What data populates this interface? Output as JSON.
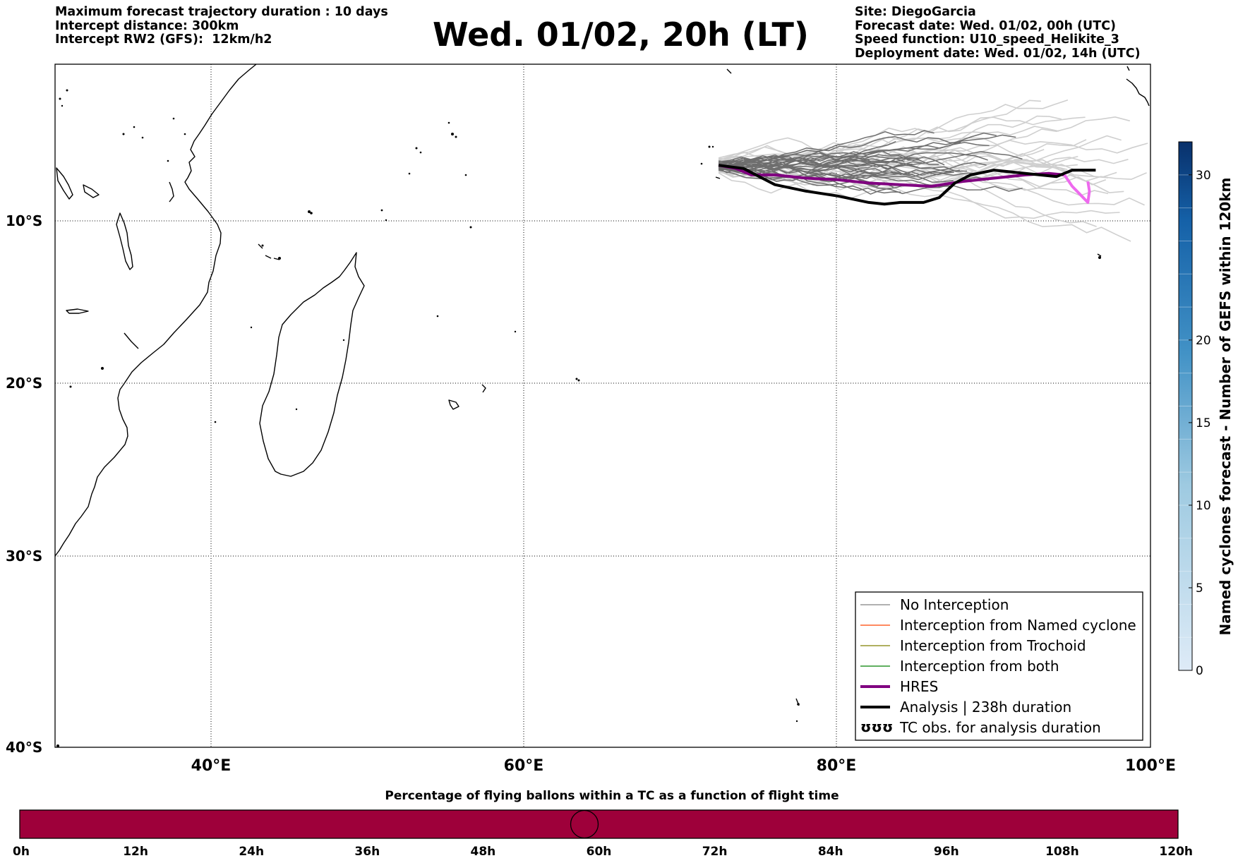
{
  "header_left": {
    "line1": "Maximum forecast trajectory duration : 10 days",
    "line2": "Intercept distance: 300km",
    "line3": "Intercept RW2 (GFS):  12km/h2"
  },
  "title": "Wed. 01/02, 20h (LT)",
  "header_right": {
    "site": "Site: DiegoGarcia",
    "forecast_date": "Forecast date: Wed. 01/02, 00h (UTC)",
    "speed_function": "Speed function: U10_speed_Helikite_3",
    "deployment_date": "Deployment date: Wed. 01/02, 14h (UTC)"
  },
  "map": {
    "lat_labels": [
      "10°S",
      "20°S",
      "30°S",
      "40°S"
    ],
    "lon_labels": [
      "40°E",
      "60°E",
      "80°E",
      "100°E"
    ],
    "lon_range": [
      30,
      100
    ],
    "lat_range": [
      -1,
      -40
    ],
    "site_lonlat": [
      72.4,
      -7.3
    ]
  },
  "legend": {
    "items": [
      {
        "label": "No Interception",
        "color": "#808080",
        "style": "thin"
      },
      {
        "label": "Interception from Named cyclone",
        "color": "#ff4500",
        "style": "thin"
      },
      {
        "label": "Interception from Trochoid",
        "color": "#808000",
        "style": "thin"
      },
      {
        "label": "Interception from both",
        "color": "#008000",
        "style": "thin"
      },
      {
        "label": "HRES",
        "color": "#800080",
        "style": "thick"
      },
      {
        "label": "Analysis | 238h duration",
        "color": "#000000",
        "style": "thick"
      },
      {
        "label": "TC obs. for analysis duration",
        "color": "#000000",
        "style": "symbol"
      }
    ]
  },
  "colorbar": {
    "label": "Named cyclones forecast - Number of GEFS within 120km",
    "ticks": [
      "0",
      "5",
      "10",
      "15",
      "20",
      "30"
    ],
    "tick_values": [
      0,
      5,
      10,
      15,
      20,
      30
    ],
    "range": [
      0,
      32
    ],
    "color_low": "#deebf7",
    "color_high": "#08306b"
  },
  "time_bar": {
    "title": "Percentage of flying ballons within a TC as a function of flight time",
    "ticks": [
      "0h",
      "12h",
      "24h",
      "36h",
      "48h",
      "60h",
      "72h",
      "84h",
      "96h",
      "108h",
      "120h"
    ],
    "range_hours": [
      0,
      120
    ],
    "marker_hours": 58.5,
    "fill_color": "#9e003a"
  },
  "chart_data": {
    "type": "line",
    "series": [
      {
        "name": "HRES",
        "color": "#800080",
        "x": [
          72.4,
          73.5,
          74.5,
          76,
          78,
          80,
          82,
          84,
          86,
          88,
          90,
          92,
          93.5,
          94.5
        ],
        "y": [
          -7.3,
          -7.5,
          -7.9,
          -7.9,
          -8.1,
          -8.2,
          -8.4,
          -8.5,
          -8.6,
          -8.3,
          -8.1,
          -7.9,
          -7.8,
          -7.9
        ]
      },
      {
        "name": "Analysis | 238h duration",
        "color": "#000000",
        "x": [
          72.4,
          74,
          76,
          78,
          80,
          82,
          83,
          84,
          85.5,
          86.5,
          87.5,
          88.5,
          90,
          92,
          94,
          95,
          96.5
        ],
        "y": [
          -7.3,
          -7.5,
          -8.5,
          -8.9,
          -9.2,
          -9.6,
          -9.7,
          -9.6,
          -9.6,
          -9.3,
          -8.4,
          -7.9,
          -7.6,
          -7.8,
          -8.0,
          -7.6,
          -7.6
        ]
      }
    ],
    "x_range": [
      30,
      100
    ],
    "y_range": [
      -1,
      -40
    ],
    "xlabel": "",
    "ylabel": ""
  }
}
